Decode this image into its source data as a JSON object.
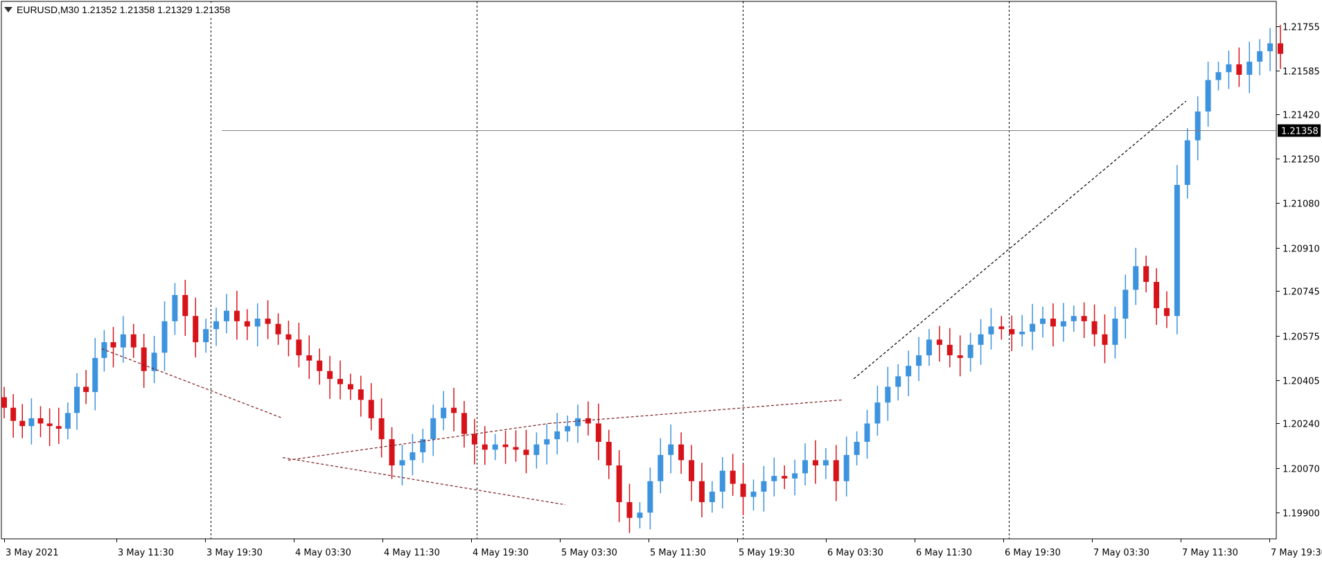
{
  "header": {
    "symbol_line": "EURUSD,M30  1.21352 1.21358 1.21329 1.21358"
  },
  "colors": {
    "bull": "#3d93dd",
    "bear": "#d7131a",
    "grid": "#000000",
    "price_line": "#808080",
    "price_tag_bg": "#000000",
    "trend_down": "#7a1a1a",
    "trend_up": "#000000"
  },
  "chart_data": {
    "type": "candlestick",
    "symbol": "EURUSD",
    "timeframe": "M30",
    "current_price": "1.21358",
    "y_ticks": [
      "1.21755",
      "1.21585",
      "1.21420",
      "1.21250",
      "1.21080",
      "1.20910",
      "1.20745",
      "1.20575",
      "1.20405",
      "1.20240",
      "1.20070",
      "1.19900"
    ],
    "x_ticks": [
      "3 May 2021",
      "3 May 11:30",
      "3 May 19:30",
      "4 May 03:30",
      "4 May 11:30",
      "4 May 19:30",
      "5 May 03:30",
      "5 May 11:30",
      "5 May 19:30",
      "6 May 03:30",
      "6 May 11:30",
      "6 May 19:30",
      "7 May 03:30",
      "7 May 11:30",
      "7 May 19:30"
    ],
    "ylim": [
      1.198,
      1.2185
    ],
    "day_separators": [
      "3 May 20:00",
      "4 May 20:00",
      "5 May 20:00",
      "6 May 20:00"
    ],
    "close_series": [
      1.203,
      1.2025,
      1.2023,
      1.2026,
      1.2024,
      1.2023,
      1.2022,
      1.2028,
      1.2038,
      1.2036,
      1.2049,
      1.2055,
      1.2053,
      1.2058,
      1.2053,
      1.2044,
      1.2051,
      1.2063,
      1.2073,
      1.2065,
      1.2055,
      1.206,
      1.2063,
      1.2067,
      1.2063,
      1.2061,
      1.2064,
      1.2062,
      1.2058,
      1.2056,
      1.205,
      1.2048,
      1.2044,
      1.2041,
      1.2039,
      1.2037,
      1.2033,
      1.2026,
      1.2018,
      1.2008,
      1.201,
      1.2013,
      1.2018,
      1.2026,
      1.203,
      1.2028,
      1.202,
      1.2016,
      1.2014,
      1.2016,
      1.2015,
      1.2014,
      1.2012,
      1.2016,
      1.2018,
      1.2021,
      1.2023,
      1.2026,
      1.2024,
      1.2017,
      1.2008,
      1.1994,
      1.1988,
      1.199,
      1.2002,
      1.2012,
      1.2016,
      1.201,
      1.2002,
      1.1994,
      1.1998,
      1.2006,
      1.2001,
      1.1996,
      1.1998,
      1.2002,
      1.2004,
      1.2003,
      1.2005,
      1.201,
      1.2008,
      1.201,
      1.2002,
      1.2012,
      1.2017,
      1.2024,
      1.2032,
      1.2038,
      1.2042,
      1.2046,
      1.205,
      1.2056,
      1.2054,
      1.205,
      1.2049,
      1.2054,
      1.2058,
      1.2061,
      1.206,
      1.2058,
      1.2059,
      1.2062,
      1.2064,
      1.2061,
      1.2063,
      1.2065,
      1.2063,
      1.2058,
      1.2054,
      1.2064,
      1.2075,
      1.2084,
      1.2078,
      1.2068,
      1.2065,
      1.2115,
      1.2132,
      1.2143,
      1.2155,
      1.2158,
      1.2161,
      1.2157,
      1.2162,
      1.2166,
      1.2169,
      1.2165
    ],
    "trend_lines": [
      {
        "from": [
          "3 May 10:00",
          1.20525
        ],
        "to": [
          "4 May 02:30",
          1.2026
        ]
      },
      {
        "from": [
          "4 May 02:30",
          1.2011
        ],
        "to": [
          "5 May 04:00",
          1.1993
        ]
      },
      {
        "from": [
          "4 May 03:00",
          1.201
        ],
        "to": [
          "5 May 02:30",
          1.2024
        ]
      },
      {
        "from": [
          "5 May 02:30",
          1.2024
        ],
        "to": [
          "6 May 05:00",
          1.2033
        ]
      },
      {
        "from": [
          "6 May 06:00",
          1.2041
        ],
        "to": [
          "7 May 12:00",
          1.2147
        ]
      }
    ]
  }
}
